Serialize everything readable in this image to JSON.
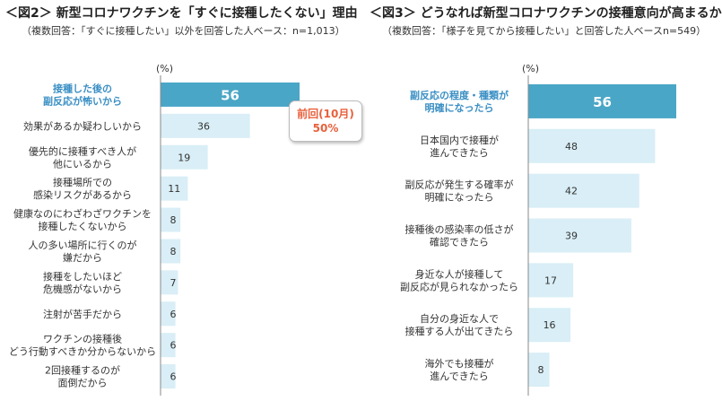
{
  "chart_data": [
    {
      "type": "bar",
      "orientation": "horizontal",
      "title": "＜図2＞ 新型コロナワクチンを「すぐに接種したくない」理由",
      "subtitle": "（複数回答：「すぐに接種したい」以外を回答した人ベース：n=1,013）",
      "unit_label": "(%)",
      "categories": [
        [
          "接種した後の",
          "副反応が怖いから"
        ],
        [
          "効果があるか疑わしいから"
        ],
        [
          "優先的に接種すべき人が",
          "他にいるから"
        ],
        [
          "接種場所での",
          "感染リスクがあるから"
        ],
        [
          "健康なのにわざわざワクチンを",
          "接種したくないから"
        ],
        [
          "人の多い場所に行くのが",
          "嫌だから"
        ],
        [
          "接種をしたいほど",
          "危機感がないから"
        ],
        [
          "注射が苦手だから"
        ],
        [
          "ワクチンの接種後",
          "どう行動すべきか分からないから"
        ],
        [
          "2回接種するのが",
          "面倒だから"
        ]
      ],
      "values": [
        56,
        36,
        19,
        11,
        8,
        8,
        7,
        6,
        6,
        6
      ],
      "highlight_index": 0,
      "callout": {
        "line1": "前回(10月)",
        "line2": "50%"
      },
      "xlim": [
        0,
        100
      ]
    },
    {
      "type": "bar",
      "orientation": "horizontal",
      "title": "＜図3＞ どうなれば新型コロナワクチンの接種意向が高まるか",
      "subtitle": "（複数回答：「様子を見てから接種したい」と回答した人ベースn=549）",
      "unit_label": "(%)",
      "categories": [
        [
          "副反応の程度・種類が",
          "明確になったら"
        ],
        [
          "日本国内で接種が",
          "進んできたら"
        ],
        [
          "副反応が発生する確率が",
          "明確になったら"
        ],
        [
          "接種後の感染率の低さが",
          "確認できたら"
        ],
        [
          "身近な人が接種して",
          "副反応が見られなかったら"
        ],
        [
          "自分の身近な人で",
          "接種する人が出てきたら"
        ],
        [
          "海外でも接種が",
          "進んできたら"
        ]
      ],
      "values": [
        56,
        48,
        42,
        39,
        17,
        16,
        8
      ],
      "highlight_index": 0,
      "xlim": [
        0,
        100
      ]
    }
  ],
  "colors": {
    "highlight_bar": "#4aa6c6",
    "normal_bar": "#d9eef6",
    "highlight_label": "#3a8fc4",
    "normal_label": "#333333",
    "axis": "#8a8a8a",
    "callout_text": "#e8603c"
  }
}
